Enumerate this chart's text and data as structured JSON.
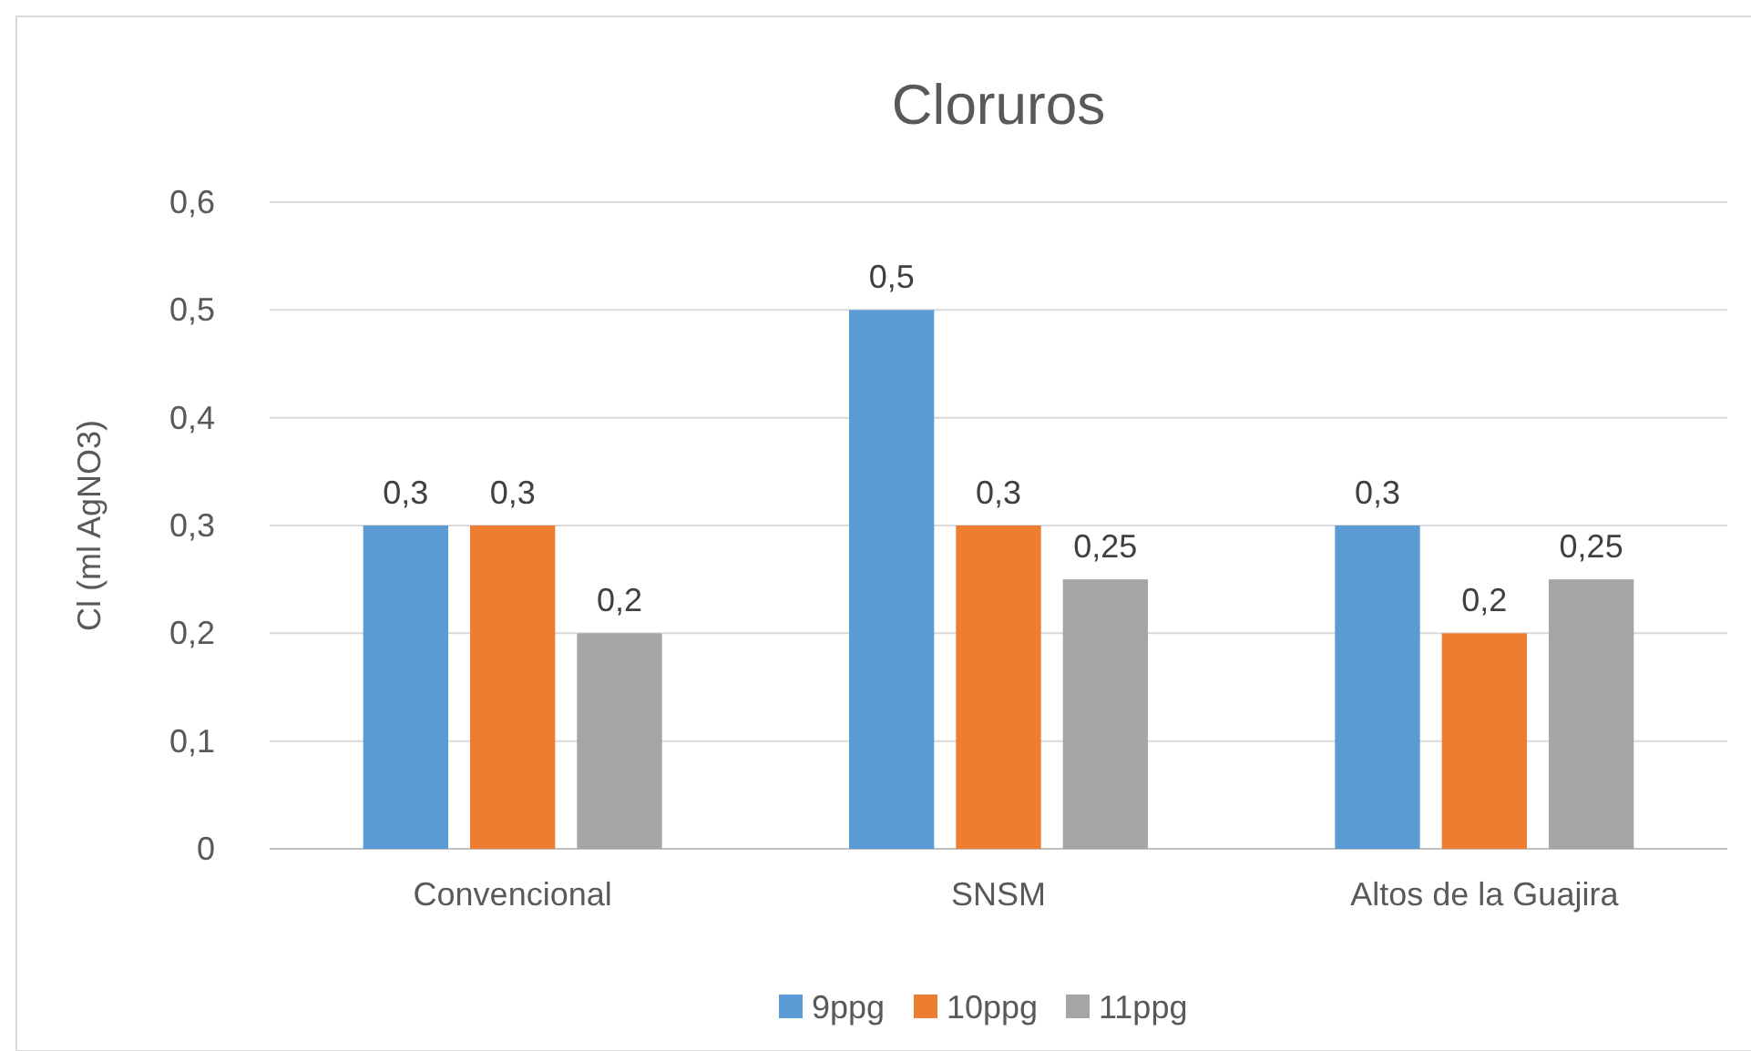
{
  "chart_data": {
    "type": "bar",
    "title": "Cloruros",
    "ylabel": "Cl (ml AgNO3)",
    "categories": [
      "Convencional",
      "SNSM",
      "Altos de la Guajira"
    ],
    "series": [
      {
        "name": "9ppg",
        "color": "#5b9bd5",
        "values": [
          0.3,
          0.5,
          0.3
        ],
        "value_labels": [
          "0,3",
          "0,5",
          "0,3"
        ]
      },
      {
        "name": "10ppg",
        "color": "#ed7d31",
        "values": [
          0.3,
          0.3,
          0.2
        ],
        "value_labels": [
          "0,3",
          "0,3",
          "0,2"
        ]
      },
      {
        "name": "11ppg",
        "color": "#a5a5a5",
        "values": [
          0.2,
          0.25,
          0.25
        ],
        "value_labels": [
          "0,2",
          "0,25",
          "0,25"
        ]
      }
    ],
    "ylim": [
      0,
      0.6
    ],
    "yticks": [
      {
        "value": 0,
        "label": "0"
      },
      {
        "value": 0.1,
        "label": "0,1"
      },
      {
        "value": 0.2,
        "label": "0,2"
      },
      {
        "value": 0.3,
        "label": "0,3"
      },
      {
        "value": 0.4,
        "label": "0,4"
      },
      {
        "value": 0.5,
        "label": "0,5"
      },
      {
        "value": 0.6,
        "label": "0,6"
      }
    ],
    "grid": "y",
    "legend": "bottom"
  }
}
